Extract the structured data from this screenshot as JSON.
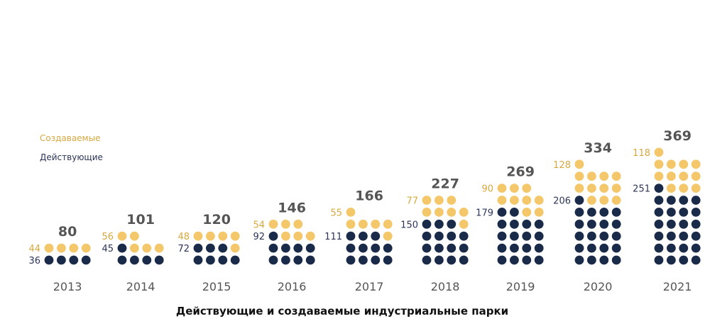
{
  "colors": {
    "created": "#f3c76a",
    "operating": "#1a2b4a",
    "created_text": "#d8a83e",
    "operating_text": "#2b3559",
    "total_text": "#555555",
    "year_text": "#555555"
  },
  "legend": {
    "created": "Создаваемые",
    "operating": "Действующие"
  },
  "caption": "Действующие и создаваемые индустриальные парки",
  "chart_data": {
    "type": "bar",
    "stacked": true,
    "categories": [
      "2013",
      "2014",
      "2015",
      "2016",
      "2017",
      "2018",
      "2019",
      "2020",
      "2021"
    ],
    "series": [
      {
        "name": "Действующие",
        "values": [
          36,
          45,
          72,
          92,
          111,
          150,
          179,
          206,
          251
        ]
      },
      {
        "name": "Создаваемые",
        "values": [
          44,
          56,
          48,
          54,
          55,
          77,
          90,
          128,
          118
        ]
      }
    ],
    "totals": [
      80,
      101,
      120,
      146,
      166,
      227,
      269,
      334,
      369
    ],
    "legend_position": "left"
  }
}
